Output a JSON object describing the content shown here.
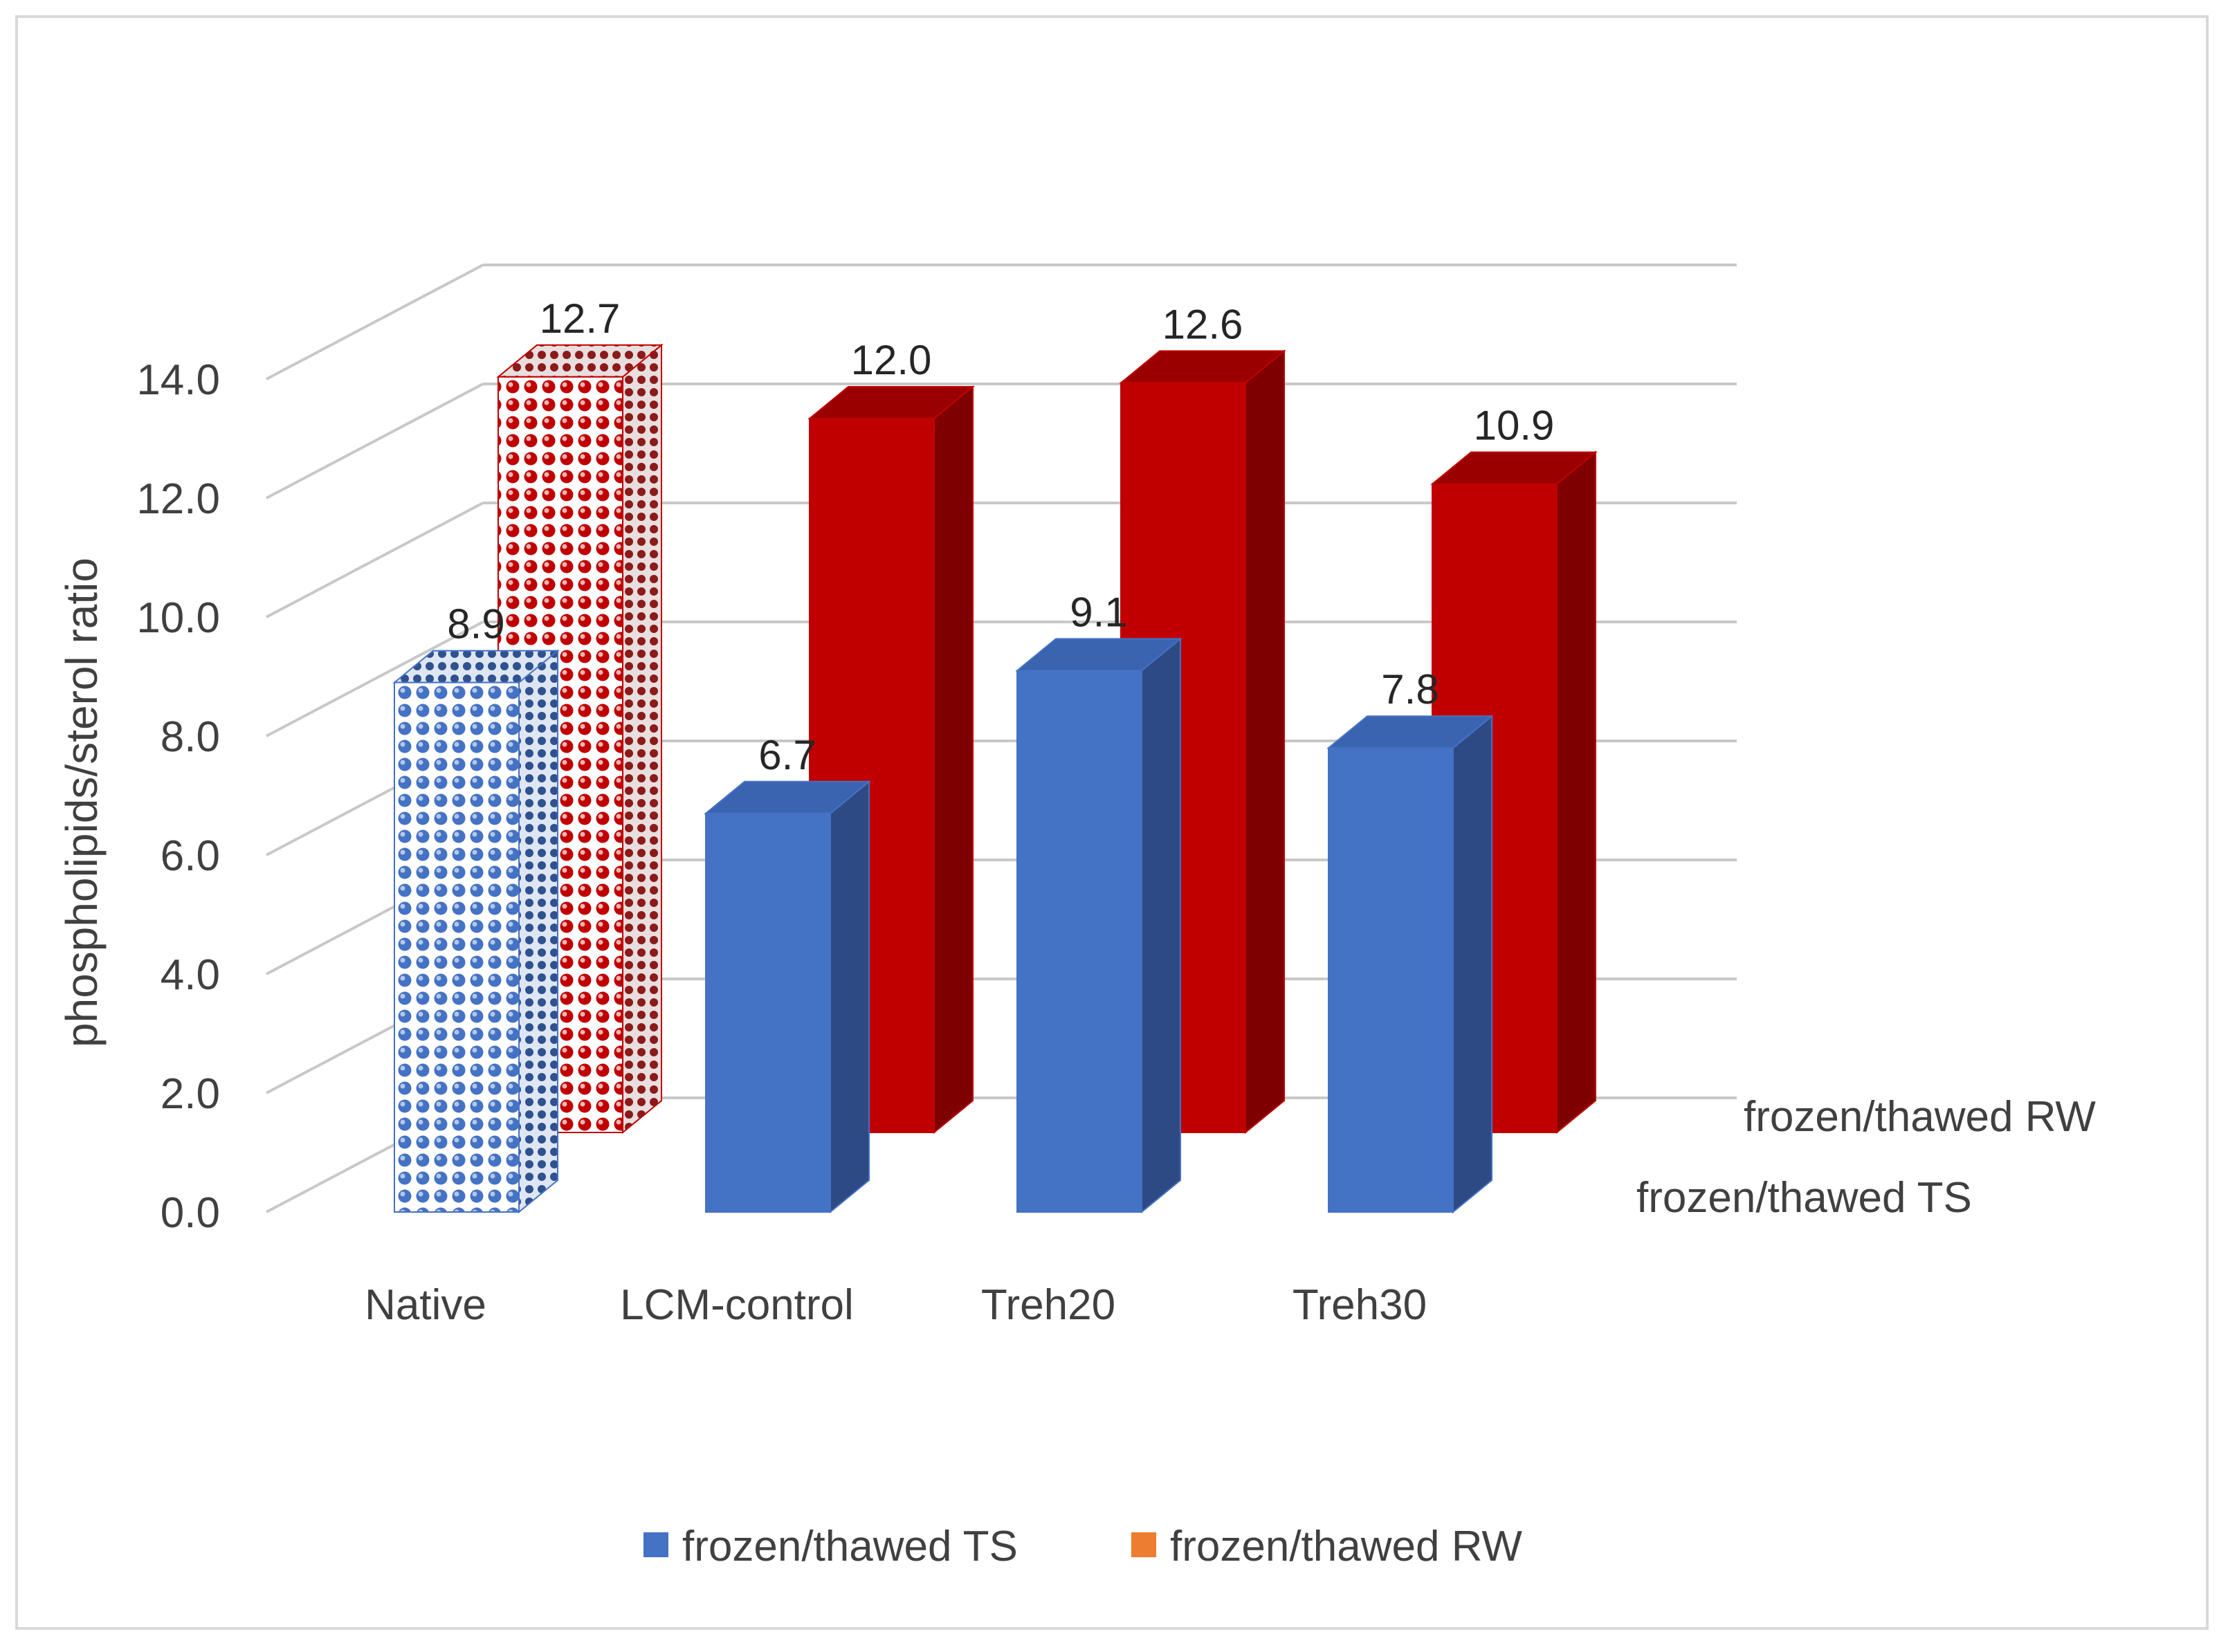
{
  "chart_data": {
    "type": "bar",
    "style": "3d-column",
    "title": "",
    "ylabel": "phospholipids/sterol ratio",
    "xlabel": "",
    "ylim": [
      0,
      14
    ],
    "ytick_step": 2,
    "yticks": [
      "0.0",
      "2.0",
      "4.0",
      "6.0",
      "8.0",
      "10.0",
      "12.0",
      "14.0"
    ],
    "categories": [
      "Native",
      "LCM-control",
      "Treh20",
      "Treh30"
    ],
    "series": [
      {
        "name": "frozen/thawed TS",
        "values": [
          8.9,
          6.7,
          9.1,
          7.8
        ],
        "labels": [
          "8.9",
          "6.7",
          "9.1",
          "7.8"
        ],
        "color": "#4472c4",
        "legend_color": "#4472c4"
      },
      {
        "name": "frozen/thawed RW",
        "values": [
          12.7,
          12.0,
          12.6,
          10.9
        ],
        "labels": [
          "12.7",
          "12.0",
          "12.6",
          "10.9"
        ],
        "color": "#c00000",
        "legend_color": "#ed7d31"
      }
    ],
    "patterned_category": "Native",
    "depth_axis_labels": [
      "frozen/thawed RW",
      "frozen/thawed TS"
    ],
    "legend_position": "bottom",
    "grid": true
  }
}
